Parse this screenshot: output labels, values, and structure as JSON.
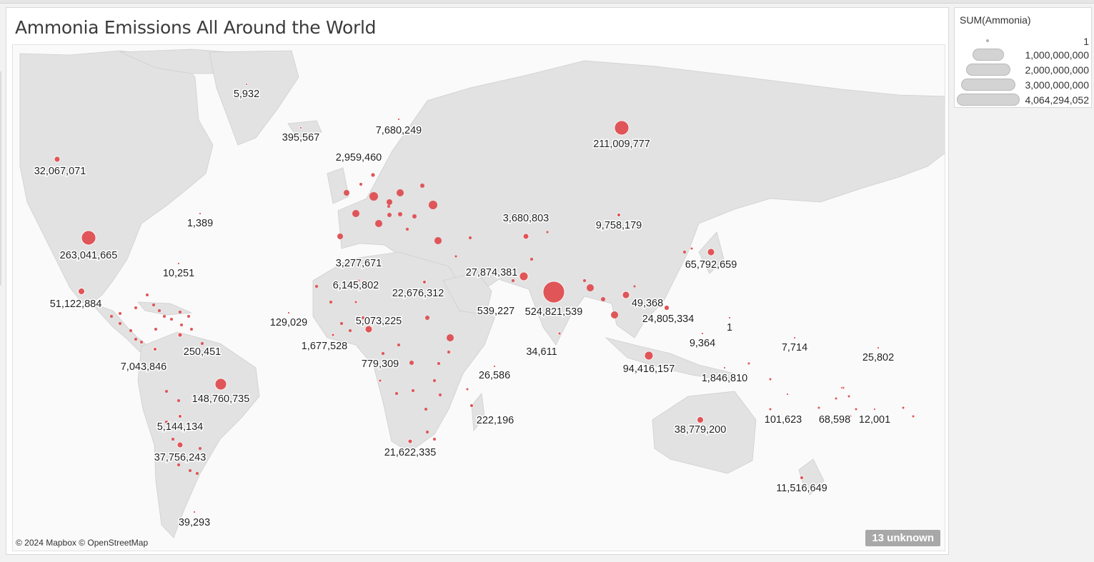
{
  "title": "Ammonia Emissions All Around the World",
  "attribution": "© 2024 Mapbox © OpenStreetMap",
  "unknown_badge": "13 unknown",
  "legend": {
    "title": "SUM(Ammonia)",
    "entries": [
      "1",
      "1,000,000,000",
      "2,000,000,000",
      "3,000,000,000",
      "4,064,294,052"
    ]
  },
  "colors": {
    "mark": "#e05558",
    "land": "#e2e2e2",
    "water": "#fafafa"
  },
  "map_labels": [
    {
      "text": "5,932"
    },
    {
      "text": "395,567"
    },
    {
      "text": "7,680,249"
    },
    {
      "text": "2,959,460"
    },
    {
      "text": "211,009,777"
    },
    {
      "text": "32,067,071"
    },
    {
      "text": "1,389"
    },
    {
      "text": "263,041,665"
    },
    {
      "text": "10,251"
    },
    {
      "text": "51,122,884"
    },
    {
      "text": "3,680,803"
    },
    {
      "text": "9,758,179"
    },
    {
      "text": "65,792,659"
    },
    {
      "text": "3,277,671"
    },
    {
      "text": "6,145,802"
    },
    {
      "text": "27,874,381"
    },
    {
      "text": "22,676,312"
    },
    {
      "text": "539,227"
    },
    {
      "text": "524,821,539"
    },
    {
      "text": "49,368"
    },
    {
      "text": "24,805,334"
    },
    {
      "text": "1"
    },
    {
      "text": "129,029"
    },
    {
      "text": "5,073,225"
    },
    {
      "text": "9,364"
    },
    {
      "text": "7,714"
    },
    {
      "text": "250,451"
    },
    {
      "text": "1,677,528"
    },
    {
      "text": "34,611"
    },
    {
      "text": "25,802"
    },
    {
      "text": "7,043,846"
    },
    {
      "text": "779,309"
    },
    {
      "text": "94,416,157"
    },
    {
      "text": "26,586"
    },
    {
      "text": "1,846,810"
    },
    {
      "text": "148,760,735"
    },
    {
      "text": "222,196"
    },
    {
      "text": "101,623"
    },
    {
      "text": "68,598"
    },
    {
      "text": "12,001"
    },
    {
      "text": "5,144,134"
    },
    {
      "text": "38,779,200"
    },
    {
      "text": "21,622,335"
    },
    {
      "text": "37,756,243"
    },
    {
      "text": "11,516,649"
    },
    {
      "text": "39,293"
    }
  ]
}
